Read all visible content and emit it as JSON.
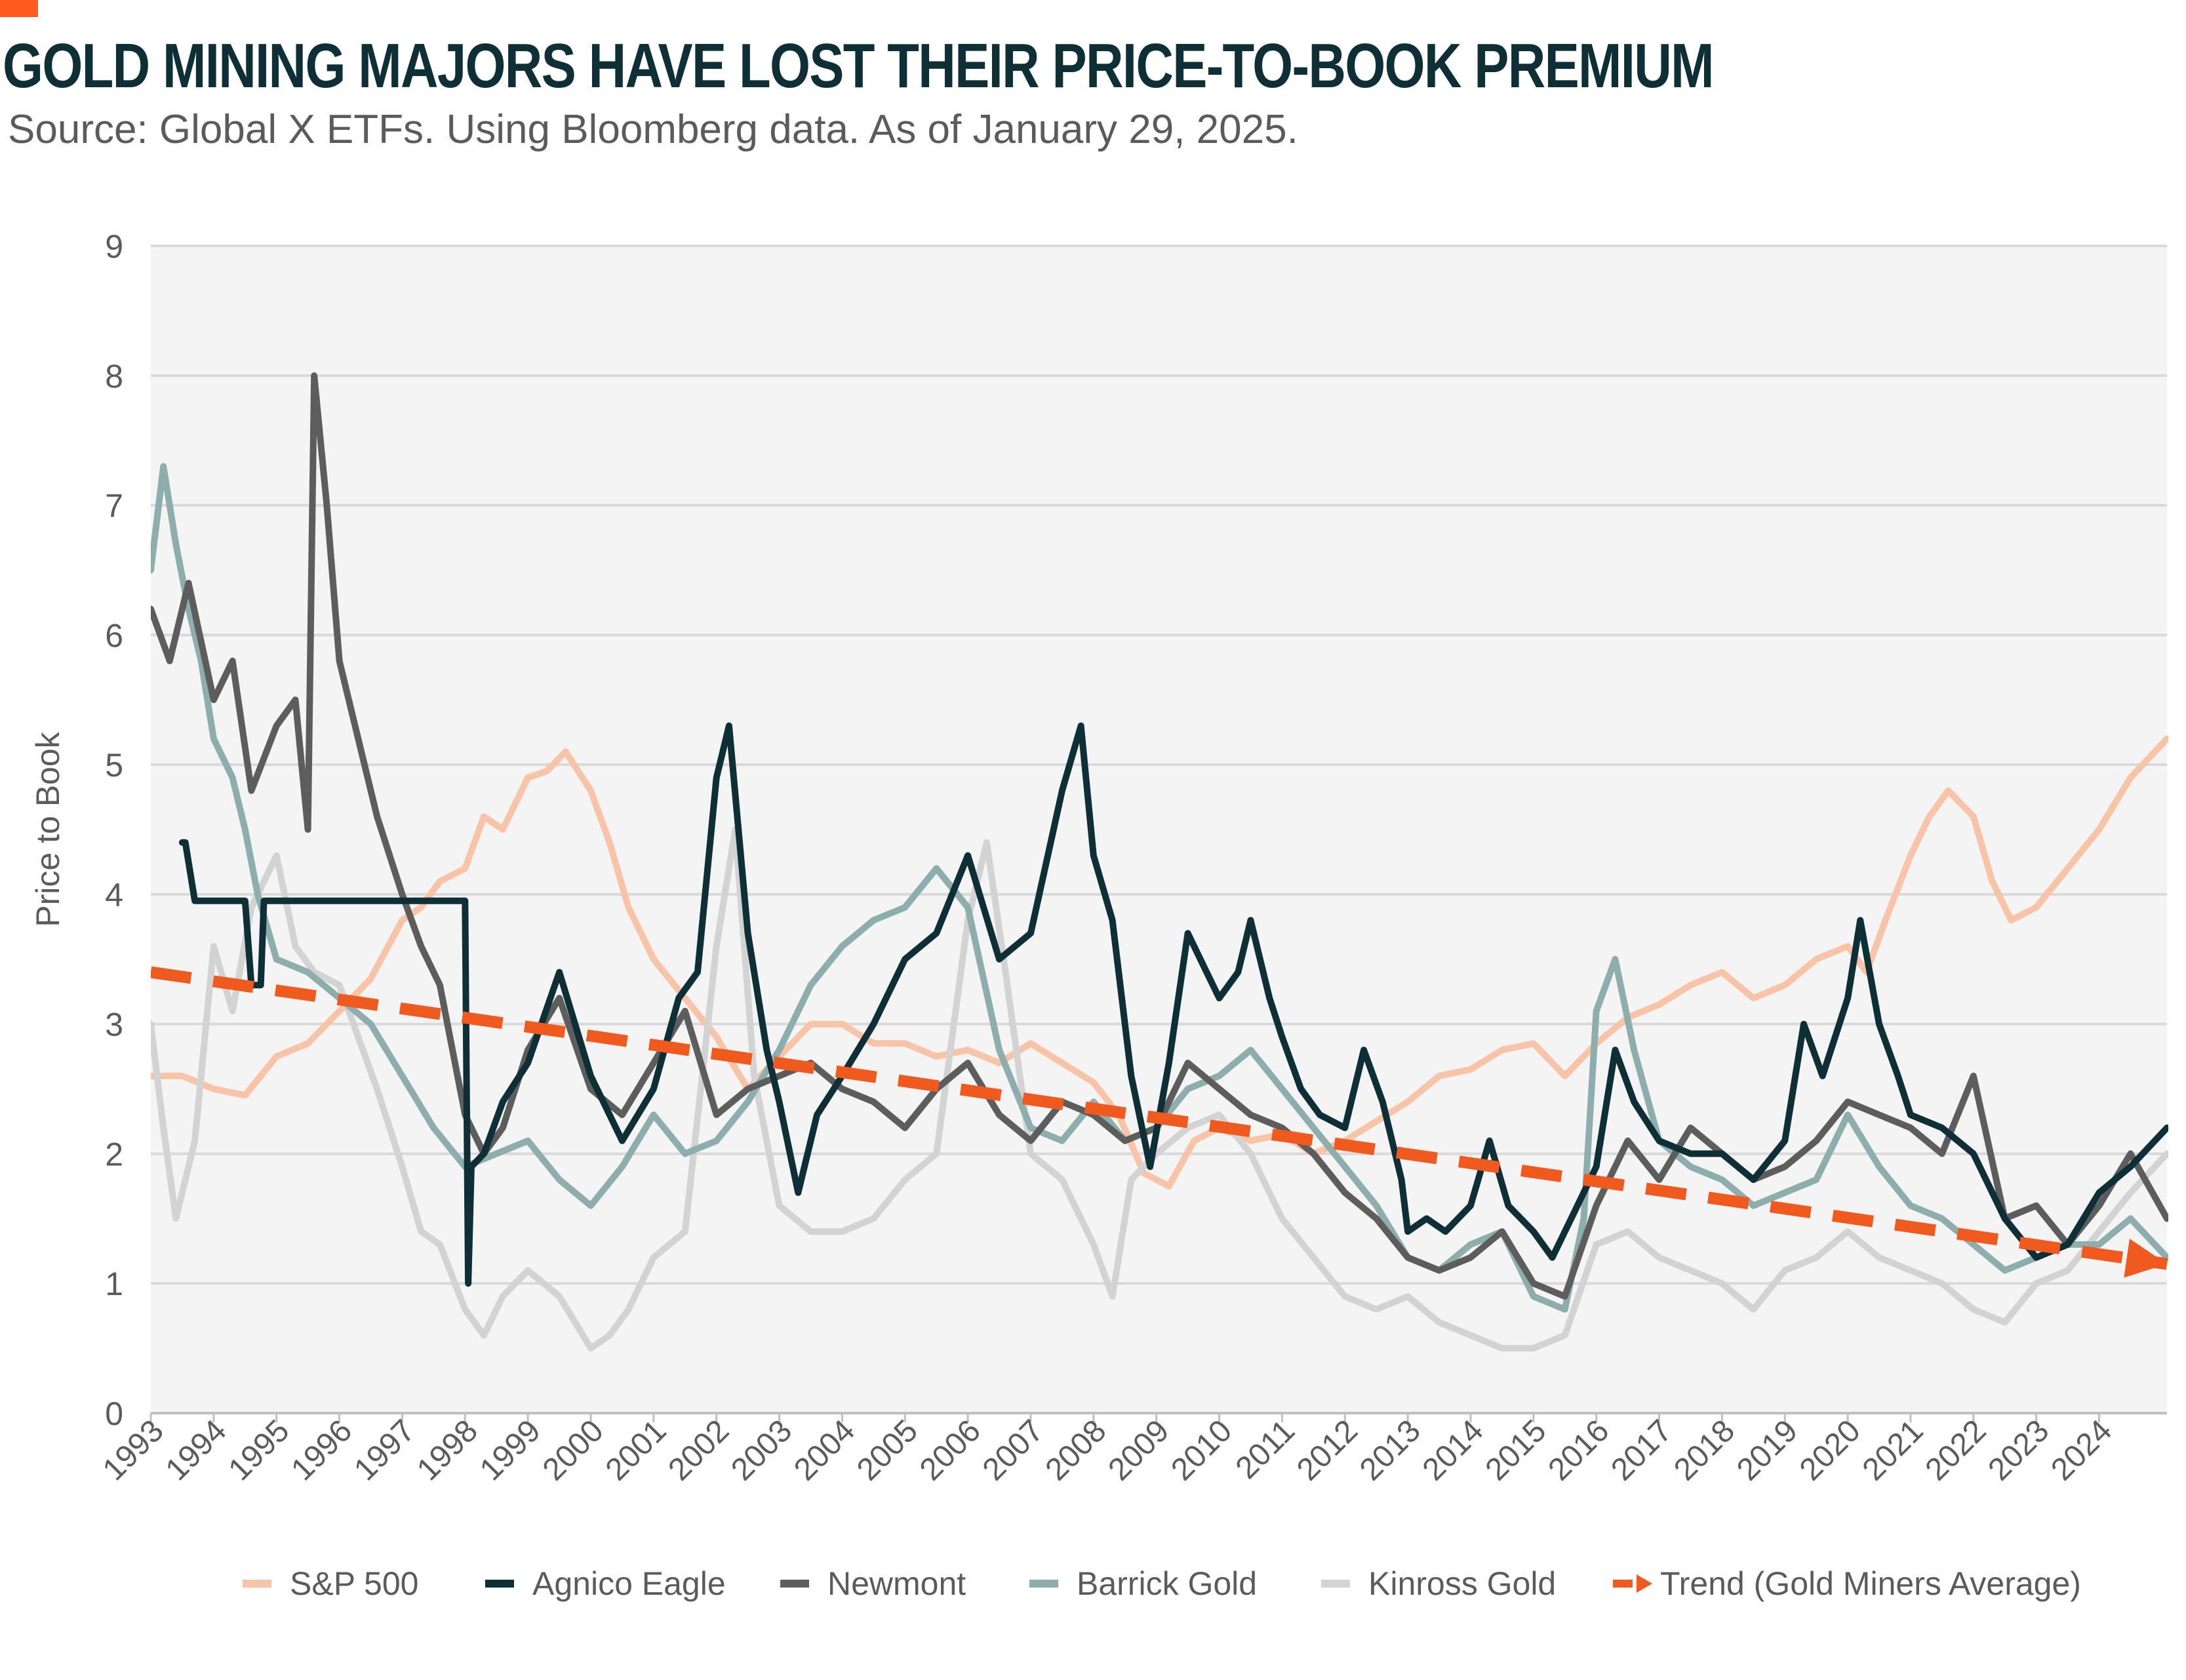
{
  "header": {
    "title": "GOLD MINING MAJORS HAVE LOST THEIR PRICE-TO-BOOK PREMIUM",
    "subtitle": "Source: Global X ETFs. Using Bloomberg data. As of January 29, 2025."
  },
  "colors": {
    "accent": "#ff5a1f",
    "title": "#0d2f35",
    "plot_background": "#f4f4f4",
    "gridline": "#d9d9d9"
  },
  "chart_data": {
    "type": "line",
    "title": "GOLD MINING MAJORS HAVE LOST THEIR PRICE-TO-BOOK PREMIUM",
    "ylabel": "Price to Book",
    "xlabel": "",
    "xlim": [
      1993.0,
      2025.08
    ],
    "ylim": [
      0,
      9
    ],
    "yticks": [
      0,
      1,
      2,
      3,
      4,
      5,
      6,
      7,
      8,
      9
    ],
    "xticks": [
      "1993",
      "1994",
      "1995",
      "1996",
      "1997",
      "1998",
      "1999",
      "2000",
      "2001",
      "2002",
      "2003",
      "2004",
      "2005",
      "2006",
      "2007",
      "2008",
      "2009",
      "2010",
      "2011",
      "2012",
      "2013",
      "2014",
      "2015",
      "2016",
      "2017",
      "2018",
      "2019",
      "2020",
      "2021",
      "2022",
      "2023",
      "2024"
    ],
    "grid": true,
    "legend_position": "bottom",
    "series": [
      {
        "name": "S&P 500",
        "color": "#f8c4a8",
        "x": [
          1993,
          1993.5,
          1994,
          1994.5,
          1995,
          1995.5,
          1996,
          1996.5,
          1997,
          1997.3,
          1997.6,
          1998,
          1998.3,
          1998.6,
          1999,
          1999.3,
          1999.6,
          2000,
          2000.3,
          2000.6,
          2001,
          2001.5,
          2002,
          2002.5,
          2003,
          2003.5,
          2004,
          2004.5,
          2005,
          2005.5,
          2006,
          2006.5,
          2007,
          2007.5,
          2008,
          2008.4,
          2008.8,
          2009.2,
          2009.6,
          2010,
          2010.5,
          2011,
          2011.5,
          2012,
          2012.5,
          2013,
          2013.5,
          2014,
          2014.5,
          2015,
          2015.5,
          2016,
          2016.5,
          2017,
          2017.5,
          2018,
          2018.5,
          2019,
          2019.5,
          2020,
          2020.3,
          2020.6,
          2021,
          2021.3,
          2021.6,
          2022,
          2022.3,
          2022.6,
          2023,
          2023.5,
          2024,
          2024.5,
          2025.08
        ],
        "y": [
          2.6,
          2.6,
          2.5,
          2.45,
          2.75,
          2.85,
          3.1,
          3.35,
          3.8,
          3.9,
          4.1,
          4.2,
          4.6,
          4.5,
          4.9,
          4.95,
          5.1,
          4.8,
          4.4,
          3.9,
          3.5,
          3.2,
          2.9,
          2.5,
          2.75,
          3.0,
          3.0,
          2.85,
          2.85,
          2.75,
          2.8,
          2.7,
          2.85,
          2.7,
          2.55,
          2.3,
          1.85,
          1.75,
          2.1,
          2.2,
          2.1,
          2.15,
          2.0,
          2.1,
          2.25,
          2.4,
          2.6,
          2.65,
          2.8,
          2.85,
          2.6,
          2.85,
          3.05,
          3.15,
          3.3,
          3.4,
          3.2,
          3.3,
          3.5,
          3.6,
          3.4,
          3.8,
          4.3,
          4.6,
          4.8,
          4.6,
          4.1,
          3.8,
          3.9,
          4.2,
          4.5,
          4.9,
          5.2
        ]
      },
      {
        "name": "Agnico Eagle",
        "color": "#0d2f35",
        "x": [
          1993.5,
          1993.55,
          1993.7,
          1993.9,
          1994.5,
          1994.6,
          1994.75,
          1994.8,
          1994.85,
          1995,
          1995.5,
          1996,
          1996.5,
          1997,
          1997.5,
          1998.0,
          1998.05,
          1998.1,
          1998.3,
          1998.6,
          1999,
          1999.5,
          2000,
          2000.5,
          2001,
          2001.4,
          2001.7,
          2002,
          2002.2,
          2002.5,
          2002.8,
          2003,
          2003.3,
          2003.6,
          2004,
          2004.5,
          2005,
          2005.5,
          2006,
          2006.5,
          2007,
          2007.5,
          2007.8,
          2008,
          2008.3,
          2008.6,
          2008.9,
          2009.2,
          2009.5,
          2009.8,
          2010,
          2010.3,
          2010.5,
          2010.8,
          2011,
          2011.3,
          2011.6,
          2012,
          2012.3,
          2012.6,
          2012.9,
          2013,
          2013.3,
          2013.6,
          2014,
          2014.3,
          2014.6,
          2015,
          2015.3,
          2015.6,
          2016,
          2016.3,
          2016.6,
          2017,
          2017.5,
          2018,
          2018.5,
          2019,
          2019.3,
          2019.6,
          2020,
          2020.2,
          2020.5,
          2020.8,
          2021,
          2021.5,
          2022,
          2022.5,
          2023,
          2023.5,
          2024,
          2024.5,
          2025.08
        ],
        "y": [
          4.4,
          4.4,
          3.95,
          3.95,
          3.95,
          3.3,
          3.3,
          3.95,
          3.95,
          3.95,
          3.95,
          3.95,
          3.95,
          3.95,
          3.95,
          3.95,
          1.0,
          1.9,
          2.0,
          2.4,
          2.7,
          3.4,
          2.6,
          2.1,
          2.5,
          3.2,
          3.4,
          4.9,
          5.3,
          3.7,
          2.8,
          2.4,
          1.7,
          2.3,
          2.6,
          3.0,
          3.5,
          3.7,
          4.3,
          3.5,
          3.7,
          4.8,
          5.3,
          4.3,
          3.8,
          2.6,
          1.9,
          2.7,
          3.7,
          3.4,
          3.2,
          3.4,
          3.8,
          3.2,
          2.9,
          2.5,
          2.3,
          2.2,
          2.8,
          2.4,
          1.8,
          1.4,
          1.5,
          1.4,
          1.6,
          2.1,
          1.6,
          1.4,
          1.2,
          1.5,
          1.9,
          2.8,
          2.4,
          2.1,
          2.0,
          2.0,
          1.8,
          2.1,
          3.0,
          2.6,
          3.2,
          3.8,
          3.0,
          2.6,
          2.3,
          2.2,
          2.0,
          1.5,
          1.2,
          1.3,
          1.7,
          1.9,
          2.2
        ]
      },
      {
        "name": "Newmont",
        "color": "#5d5d5d",
        "x": [
          1993,
          1993.3,
          1993.6,
          1994,
          1994.3,
          1994.6,
          1995,
          1995.3,
          1995.5,
          1995.6,
          1995.8,
          1996,
          1996.3,
          1996.6,
          1997,
          1997.3,
          1997.6,
          1998,
          1998.3,
          1998.6,
          1999,
          1999.5,
          2000,
          2000.5,
          2001,
          2001.5,
          2002,
          2002.5,
          2003,
          2003.5,
          2004,
          2004.5,
          2005,
          2005.5,
          2006,
          2006.5,
          2007,
          2007.5,
          2008,
          2008.5,
          2009,
          2009.5,
          2010,
          2010.5,
          2011,
          2011.5,
          2012,
          2012.5,
          2013,
          2013.5,
          2014,
          2014.5,
          2015,
          2015.5,
          2016,
          2016.5,
          2017,
          2017.5,
          2018,
          2018.5,
          2019,
          2019.5,
          2020,
          2020.5,
          2021,
          2021.5,
          2022,
          2022.5,
          2023,
          2023.5,
          2024,
          2024.5,
          2025.08
        ],
        "y": [
          6.2,
          5.8,
          6.4,
          5.5,
          5.8,
          4.8,
          5.3,
          5.5,
          4.5,
          8.0,
          7.0,
          5.8,
          5.2,
          4.6,
          4.0,
          3.6,
          3.3,
          2.3,
          2.0,
          2.2,
          2.8,
          3.2,
          2.5,
          2.3,
          2.7,
          3.1,
          2.3,
          2.5,
          2.6,
          2.7,
          2.5,
          2.4,
          2.2,
          2.5,
          2.7,
          2.3,
          2.1,
          2.4,
          2.3,
          2.1,
          2.2,
          2.7,
          2.5,
          2.3,
          2.2,
          2.0,
          1.7,
          1.5,
          1.2,
          1.1,
          1.2,
          1.4,
          1.0,
          0.9,
          1.6,
          2.1,
          1.8,
          2.2,
          2.0,
          1.8,
          1.9,
          2.1,
          2.4,
          2.3,
          2.2,
          2.0,
          2.6,
          1.5,
          1.6,
          1.3,
          1.6,
          2.0,
          1.5
        ]
      },
      {
        "name": "Barrick Gold",
        "color": "#8eaeae",
        "x": [
          1993,
          1993.2,
          1993.4,
          1993.6,
          1993.8,
          1994,
          1994.3,
          1994.5,
          1994.7,
          1995,
          1995.5,
          1996,
          1996.5,
          1997,
          1997.5,
          1998,
          1998.5,
          1999,
          1999.5,
          2000,
          2000.5,
          2001,
          2001.5,
          2002,
          2002.5,
          2003,
          2003.5,
          2004,
          2004.5,
          2005,
          2005.5,
          2006,
          2006.5,
          2007,
          2007.5,
          2008,
          2008.5,
          2009,
          2009.5,
          2010,
          2010.5,
          2011,
          2011.5,
          2012,
          2012.5,
          2013,
          2013.5,
          2014,
          2014.5,
          2015,
          2015.5,
          2015.8,
          2016,
          2016.3,
          2016.6,
          2017,
          2017.5,
          2018,
          2018.5,
          2019,
          2019.5,
          2020,
          2020.5,
          2021,
          2021.5,
          2022,
          2022.5,
          2023,
          2023.5,
          2024,
          2024.5,
          2025.08
        ],
        "y": [
          6.5,
          7.3,
          6.7,
          6.2,
          5.8,
          5.2,
          4.9,
          4.5,
          4.0,
          3.5,
          3.4,
          3.2,
          3.0,
          2.6,
          2.2,
          1.9,
          2.0,
          2.1,
          1.8,
          1.6,
          1.9,
          2.3,
          2.0,
          2.1,
          2.4,
          2.8,
          3.3,
          3.6,
          3.8,
          3.9,
          4.2,
          3.9,
          2.8,
          2.2,
          2.1,
          2.4,
          2.1,
          2.2,
          2.5,
          2.6,
          2.8,
          2.5,
          2.2,
          1.9,
          1.6,
          1.2,
          1.1,
          1.3,
          1.4,
          0.9,
          0.8,
          1.5,
          3.1,
          3.5,
          2.8,
          2.1,
          1.9,
          1.8,
          1.6,
          1.7,
          1.8,
          2.3,
          1.9,
          1.6,
          1.5,
          1.3,
          1.1,
          1.2,
          1.3,
          1.3,
          1.5,
          1.2
        ]
      },
      {
        "name": "Kinross Gold",
        "color": "#d3d3d3",
        "x": [
          1993,
          1993.2,
          1993.4,
          1993.7,
          1994,
          1994.3,
          1994.6,
          1995,
          1995.3,
          1995.6,
          1996,
          1996.3,
          1996.6,
          1997,
          1997.3,
          1997.6,
          1998,
          1998.3,
          1998.6,
          1999,
          1999.5,
          2000,
          2000.3,
          2000.6,
          2001,
          2001.5,
          2002,
          2002.3,
          2002.6,
          2003,
          2003.5,
          2004,
          2004.5,
          2005,
          2005.5,
          2006,
          2006.3,
          2006.6,
          2007,
          2007.5,
          2008,
          2008.3,
          2008.6,
          2009,
          2009.5,
          2010,
          2010.5,
          2011,
          2011.5,
          2012,
          2012.5,
          2013,
          2013.5,
          2014,
          2014.5,
          2015,
          2015.5,
          2016,
          2016.5,
          2017,
          2017.5,
          2018,
          2018.5,
          2019,
          2019.5,
          2020,
          2020.5,
          2021,
          2021.5,
          2022,
          2022.5,
          2023,
          2023.5,
          2024,
          2024.5,
          2025.08
        ],
        "y": [
          3.0,
          2.2,
          1.5,
          2.1,
          3.6,
          3.1,
          3.9,
          4.3,
          3.6,
          3.4,
          3.3,
          2.9,
          2.5,
          1.9,
          1.4,
          1.3,
          0.8,
          0.6,
          0.9,
          1.1,
          0.9,
          0.5,
          0.6,
          0.8,
          1.2,
          1.4,
          3.6,
          4.5,
          2.6,
          1.6,
          1.4,
          1.4,
          1.5,
          1.8,
          2.0,
          3.8,
          4.4,
          3.4,
          2.0,
          1.8,
          1.3,
          0.9,
          1.8,
          2.0,
          2.2,
          2.3,
          2.0,
          1.5,
          1.2,
          0.9,
          0.8,
          0.9,
          0.7,
          0.6,
          0.5,
          0.5,
          0.6,
          1.3,
          1.4,
          1.2,
          1.1,
          1.0,
          0.8,
          1.1,
          1.2,
          1.4,
          1.2,
          1.1,
          1.0,
          0.8,
          0.7,
          1.0,
          1.1,
          1.4,
          1.7,
          2.0
        ]
      },
      {
        "name": "Trend (Gold Miners Average)",
        "color": "#f05a1e",
        "dashed": true,
        "x": [
          1993,
          2025.08
        ],
        "y": [
          3.4,
          1.15
        ]
      }
    ]
  }
}
